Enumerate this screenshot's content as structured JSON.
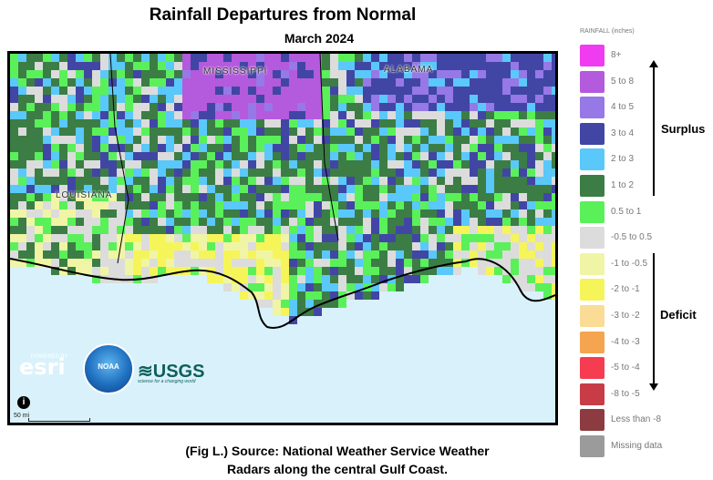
{
  "header": {
    "title": "Rainfall Departures from Normal",
    "subtitle": "March 2024"
  },
  "map": {
    "state_labels": [
      "MISSISSIPPI",
      "ALABAMA",
      "LOUISIANA"
    ],
    "logos": {
      "esri_small": "POWERED BY",
      "esri": "esri",
      "noaa": "NOAA",
      "usgs": "≋USGS",
      "usgs_sub": "science for a changing world"
    },
    "info_icon": "info-icon",
    "scale_label": "50 mi"
  },
  "caption": {
    "line1": "(Fig L.) Source: National Weather Service Weather",
    "line2": "Radars along the central Gulf Coast."
  },
  "legend": {
    "title": "RAINFALL (inches)",
    "surplus_label": "Surplus",
    "deficit_label": "Deficit",
    "items": [
      {
        "label": "8+",
        "color": "#f03cf0"
      },
      {
        "label": "5 to 8",
        "color": "#b45adc"
      },
      {
        "label": "4 to 5",
        "color": "#9678e6"
      },
      {
        "label": "3 to 4",
        "color": "#4146a5"
      },
      {
        "label": "2 to 3",
        "color": "#5ac8fa"
      },
      {
        "label": "1 to 2",
        "color": "#3c7d46"
      },
      {
        "label": "0.5 to 1",
        "color": "#5af05a"
      },
      {
        "label": "-0.5 to 0.5",
        "color": "#dcdcdc"
      },
      {
        "label": "-1 to -0.5",
        "color": "#f0f5a5"
      },
      {
        "label": "-2 to -1",
        "color": "#f5f55a"
      },
      {
        "label": "-3 to -2",
        "color": "#fadc96"
      },
      {
        "label": "-4 to -3",
        "color": "#f5a550"
      },
      {
        "label": "-5 to -4",
        "color": "#f53c50"
      },
      {
        "label": "-8 to -5",
        "color": "#c83c46"
      },
      {
        "label": "Less than -8",
        "color": "#8c3c41"
      },
      {
        "label": "Missing data",
        "color": "#9b9b9b"
      }
    ]
  }
}
